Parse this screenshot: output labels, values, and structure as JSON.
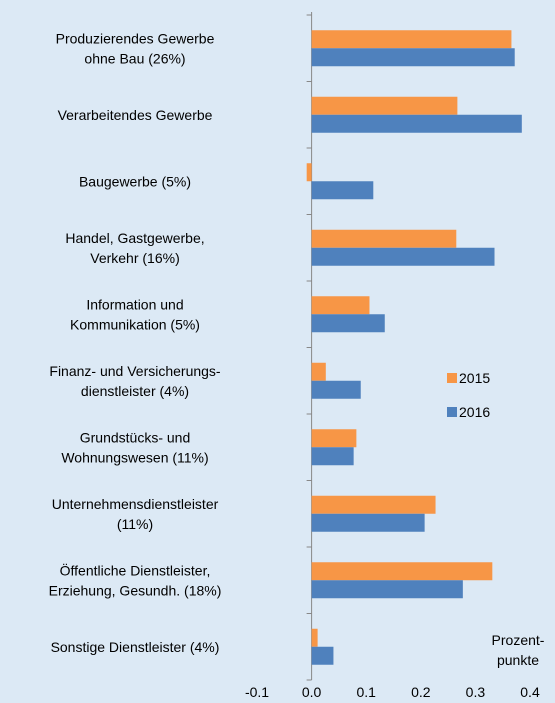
{
  "chart_data": {
    "type": "hbar",
    "categories": [
      "Produzierendes Gewerbe\nohne Bau (26%)",
      "Verarbeitendes Gewerbe",
      "Baugewerbe (5%)",
      "Handel, Gastgewerbe,\nVerkehr (16%)",
      "Information und\nKommunikation (5%)",
      "Finanz- und Versicherungs-\ndienstleister (4%)",
      "Grundstücks- und\nWohnungswesen (11%)",
      "Unternehmensdienstleister\n(11%)",
      "Öffentliche Dienstleister,\nErziehung, Gesundh. (18%)",
      "Sonstige Dienstleister (4%)"
    ],
    "series": [
      {
        "name": "2015",
        "color": "#f79646",
        "values": [
          0.366,
          0.267,
          -0.009,
          0.265,
          0.106,
          0.026,
          0.082,
          0.227,
          0.331,
          0.011
        ]
      },
      {
        "name": "2016",
        "color": "#4f81bd",
        "values": [
          0.372,
          0.385,
          0.113,
          0.335,
          0.134,
          0.09,
          0.077,
          0.207,
          0.277,
          0.04
        ]
      }
    ],
    "xlim": [
      -0.1,
      0.4
    ],
    "xticks": [
      -0.1,
      {
        "value": 0,
        "label": "0.0"
      },
      0.1,
      0.2,
      0.3,
      0.4
    ],
    "x_label": "Prozent-\npunkte",
    "legend": "right"
  }
}
